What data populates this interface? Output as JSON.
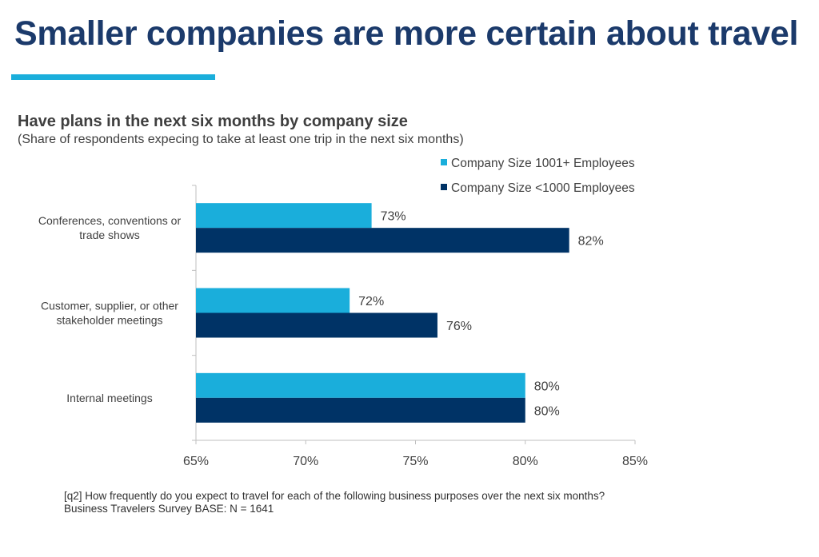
{
  "slide": {
    "title": "Smaller companies are more certain about travel",
    "accent_color": "#1aaedb",
    "title_color": "#1b3a6b"
  },
  "chart_data": {
    "type": "bar",
    "orientation": "horizontal",
    "title": "Have plans in the next six months by company size",
    "subtitle": "(Share of respondents expecing to take at least one trip in the next six months)",
    "categories": [
      [
        "Conferences, conventions or",
        "trade shows"
      ],
      [
        "Customer, supplier, or other",
        "stakeholder meetings"
      ],
      [
        "Internal meetings"
      ]
    ],
    "series": [
      {
        "name": "Company Size 1001+ Employees",
        "color": "#1aaedb",
        "values": [
          73,
          72,
          80
        ],
        "labels": [
          "73%",
          "72%",
          "80%"
        ]
      },
      {
        "name": "Company Size <1000 Employees",
        "color": "#003366",
        "values": [
          82,
          76,
          80
        ],
        "labels": [
          "82%",
          "76%",
          "80%"
        ]
      }
    ],
    "xlim": [
      65,
      85
    ],
    "xticks": [
      65,
      70,
      75,
      80,
      85
    ],
    "xtick_labels": [
      "65%",
      "70%",
      "75%",
      "80%",
      "85%"
    ],
    "legend_position": "top-right",
    "grid": false
  },
  "footnote": {
    "question": "[q2] How frequently do you expect to travel for each of the following business purposes over the next six months?",
    "base": "Business Travelers Survey BASE: N = 1641"
  }
}
